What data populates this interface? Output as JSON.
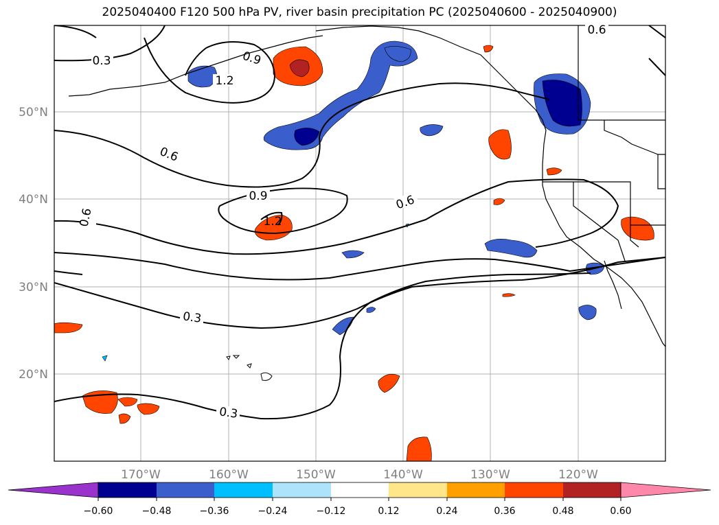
{
  "title": "2025040400 F120 500 hPa PV, river basin precipitation PC (2025040600 - 2025040900)",
  "lat_labels": [
    "50°N",
    "40°N",
    "30°N",
    "20°N"
  ],
  "lon_labels": [
    "170°W",
    "160°W",
    "150°W",
    "140°W",
    "130°W",
    "120°W"
  ],
  "contour_labels": [
    "0.3",
    "0.9",
    "1.2",
    "0.6",
    "0.6",
    "0.9",
    "1.2",
    "0.6",
    "0.6",
    "0.3",
    "0.3"
  ],
  "colorbar": {
    "ticks": [
      "−0.60",
      "−0.48",
      "−0.36",
      "−0.24",
      "−0.12",
      "0.12",
      "0.24",
      "0.36",
      "0.48",
      "0.60"
    ],
    "colors": {
      "under": "#9933cc",
      "b1": "#000090",
      "b2": "#3a5fcd",
      "b3": "#00bfff",
      "b4": "#aee4fb",
      "neutral": "#ffffff",
      "p1": "#ffe68a",
      "p2": "#ffa000",
      "p3": "#ff4500",
      "p4": "#b22222",
      "over": "#ff88aa"
    }
  }
}
